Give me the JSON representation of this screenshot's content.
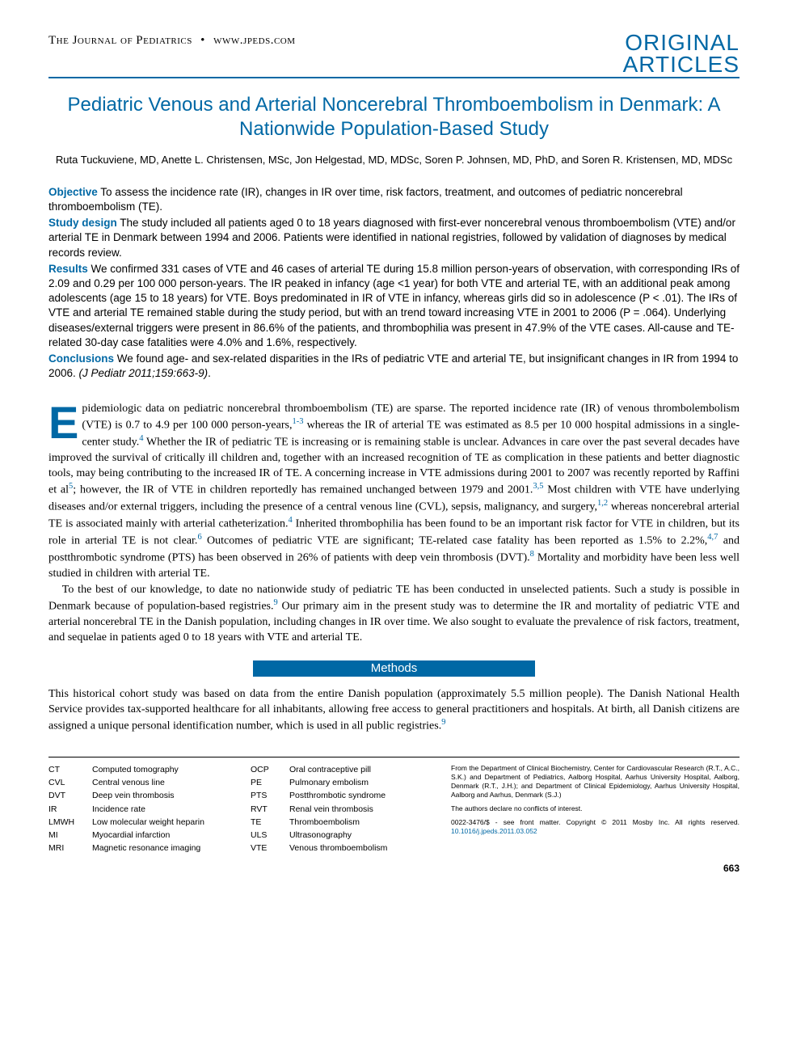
{
  "header": {
    "journal": "The Journal of Pediatrics",
    "site": "www.jpeds.com",
    "section_line1": "ORIGINAL",
    "section_line2": "ARTICLES"
  },
  "title": "Pediatric Venous and Arterial Noncerebral Thromboembolism in Denmark: A Nationwide Population-Based Study",
  "authors": "Ruta Tuckuviene, MD, Anette L. Christensen, MSc, Jon Helgestad, MD, MDSc, Soren P. Johnsen, MD, PhD, and Soren R. Kristensen, MD, MDSc",
  "abstract": {
    "objective": {
      "label": "Objective",
      "text": "To assess the incidence rate (IR), changes in IR over time, risk factors, treatment, and outcomes of pediatric noncerebral thromboembolism (TE)."
    },
    "design": {
      "label": "Study design",
      "text": "The study included all patients aged 0 to 18 years diagnosed with first-ever noncerebral venous thromboembolism (VTE) and/or arterial TE in Denmark between 1994 and 2006. Patients were identified in national registries, followed by validation of diagnoses by medical records review."
    },
    "results": {
      "label": "Results",
      "text": "We confirmed 331 cases of VTE and 46 cases of arterial TE during 15.8 million person-years of observation, with corresponding IRs of 2.09 and 0.29 per 100 000 person-years. The IR peaked in infancy (age <1 year) for both VTE and arterial TE, with an additional peak among adolescents (age 15 to 18 years) for VTE. Boys predominated in IR of VTE in infancy, whereas girls did so in adolescence (P < .01). The IRs of VTE and arterial TE remained stable during the study period, but with an trend toward increasing VTE in 2001 to 2006 (P = .064). Underlying diseases/external triggers were present in 86.6% of the patients, and thrombophilia was present in 47.9% of the VTE cases. All-cause and TE-related 30-day case fatalities were 4.0% and 1.6%, respectively."
    },
    "conclusions": {
      "label": "Conclusions",
      "text": "We found age- and sex-related disparities in the IRs of pediatric VTE and arterial TE, but insignificant changes in IR from 1994 to 2006. (J Pediatr 2011;159:663-9)."
    }
  },
  "body": {
    "p1": "pidemiologic data on pediatric noncerebral thromboembolism (TE) are sparse. The reported incidence rate (IR) of venous thrombolembolism (VTE) is 0.7 to 4.9 per 100 000 person-years,1-3 whereas the IR of arterial TE was estimated as 8.5 per 10 000 hospital admissions in a single-center study.4 Whether the IR of pediatric TE is increasing or is remaining stable is unclear. Advances in care over the past several decades have improved the survival of critically ill children and, together with an increased recognition of TE as complication in these patients and better diagnostic tools, may being contributing to the increased IR of TE. A concerning increase in VTE admissions during 2001 to 2007 was recently reported by Raffini et al5; however, the IR of VTE in children reportedly has remained unchanged between 1979 and 2001.3,5 Most children with VTE have underlying diseases and/or external triggers, including the presence of a central venous line (CVL), sepsis, malignancy, and surgery,1,2 whereas noncerebral arterial TE is associated mainly with arterial catheterization.4 Inherited thrombophilia has been found to be an important risk factor for VTE in children, but its role in arterial TE is not clear.6 Outcomes of pediatric VTE are significant; TE-related case fatality has been reported as 1.5% to 2.2%,4,7 and postthrombotic syndrome (PTS) has been observed in 26% of patients with deep vein thrombosis (DVT).8 Mortality and morbidity have been less well studied in children with arterial TE.",
    "p2": "To the best of our knowledge, to date no nationwide study of pediatric TE has been conducted in unselected patients. Such a study is possible in Denmark because of population-based registries.9 Our primary aim in the present study was to determine the IR and mortality of pediatric VTE and arterial noncerebral TE in the Danish population, including changes in IR over time. We also sought to evaluate the prevalence of risk factors, treatment, and sequelae in patients aged 0 to 18 years with VTE and arterial TE."
  },
  "methods_heading": "Methods",
  "methods_p1": "This historical cohort study was based on data from the entire Danish population (approximately 5.5 million people). The Danish National Health Service provides tax-supported healthcare for all inhabitants, allowing free access to general practitioners and hospitals. At birth, all Danish citizens are assigned a unique personal identification number, which is used in all public registries.9",
  "abbreviations": [
    [
      "CT",
      "Computed tomography",
      "OCP",
      "Oral contraceptive pill"
    ],
    [
      "CVL",
      "Central venous line",
      "PE",
      "Pulmonary embolism"
    ],
    [
      "DVT",
      "Deep vein thrombosis",
      "PTS",
      "Postthrombotic syndrome"
    ],
    [
      "IR",
      "Incidence rate",
      "RVT",
      "Renal vein thrombosis"
    ],
    [
      "LMWH",
      "Low molecular weight heparin",
      "TE",
      "Thromboembolism"
    ],
    [
      "MI",
      "Myocardial infarction",
      "ULS",
      "Ultrasonography"
    ],
    [
      "MRI",
      "Magnetic resonance imaging",
      "VTE",
      "Venous thromboembolism"
    ]
  ],
  "affiliation": {
    "p1": "From the Department of Clinical Biochemistry, Center for Cardiovascular Research (R.T., A.C., S.K.) and Department of Pediatrics, Aalborg Hospital, Aarhus University Hospital, Aalborg, Denmark (R.T., J.H.); and Department of Clinical Epidemiology, Aarhus University Hospital, Aalborg and Aarhus, Denmark (S.J.)",
    "p2": "The authors declare no conflicts of interest.",
    "p3a": "0022-3476/$ - see front matter. Copyright © 2011 Mosby Inc. All rights reserved. ",
    "doi": "10.1016/j.jpeds.2011.03.052"
  },
  "page_number": "663",
  "colors": {
    "accent": "#0068a5",
    "text": "#000000",
    "bg": "#ffffff"
  }
}
